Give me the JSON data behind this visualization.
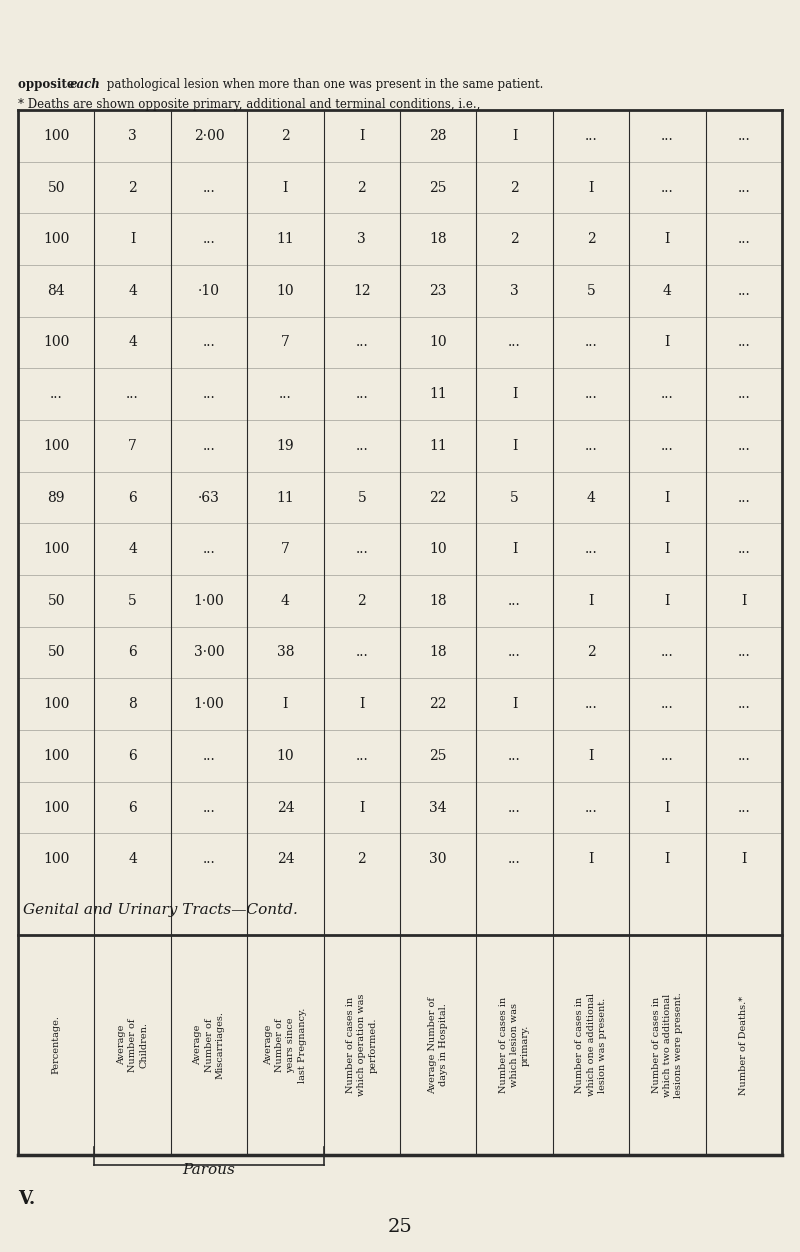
{
  "page_number": "25",
  "section_label": "V.",
  "bg_color": "#f0ece0",
  "table_bg": "#f0ece0",
  "parous_brace_label": "Parous",
  "section_header_parts": [
    "Genit",
    "al and ",
    "Urina",
    "ry ",
    "Trac",
    "ts—Co",
    "ntd."
  ],
  "section_header_full": "Genital and Urinary Tracts—Contd.",
  "col_headers": [
    "Percentage.",
    "Average\nNumber of\nChildren.",
    "Average\nNumber of\nMiscarriages.",
    "Average\nNumber of\nyears since\nlast Pregnancy.",
    "Number of cases in\nwhich operation was\nperformed.",
    "Average Number of\ndays in Hospital.",
    "Number of cases in\nwhich lesion was\nprimary.",
    "Number of cases in\nwhich one additional\nlesion was present.",
    "Number of cases in\nwhich two additional\nlesions were present.",
    "Number of Deaths.*"
  ],
  "rows": [
    [
      "100",
      "4",
      "...",
      "24",
      "2",
      "30",
      "...",
      "I",
      "I",
      "I"
    ],
    [
      "100",
      "6",
      "...",
      "24",
      "I",
      "34",
      "...",
      "...",
      "I",
      "..."
    ],
    [
      "100",
      "6",
      "...",
      "10",
      "...",
      "25",
      "...",
      "I",
      "...",
      "..."
    ],
    [
      "100",
      "8",
      "1·00",
      "I",
      "I",
      "22",
      "I",
      "...",
      "...",
      "..."
    ],
    [
      "50",
      "6",
      "3·00",
      "38",
      "...",
      "18",
      "...",
      "2",
      "...",
      "..."
    ],
    [
      "50",
      "5",
      "1·00",
      "4",
      "2",
      "18",
      "...",
      "I",
      "I",
      "I"
    ],
    [
      "100",
      "4",
      "...",
      "7",
      "...",
      "10",
      "I",
      "...",
      "I",
      "..."
    ],
    [
      "89",
      "6",
      "·63",
      "11",
      "5",
      "22",
      "5",
      "4",
      "I",
      "..."
    ],
    [
      "100",
      "7",
      "...",
      "19",
      "...",
      "11",
      "I",
      "...",
      "...",
      "..."
    ],
    [
      "...",
      "...",
      "...",
      "...",
      "...",
      "11",
      "I",
      "...",
      "...",
      "..."
    ],
    [
      "100",
      "4",
      "...",
      "7",
      "...",
      "10",
      "...",
      "...",
      "I",
      "..."
    ],
    [
      "84",
      "4",
      "·10",
      "10",
      "12",
      "23",
      "3",
      "5",
      "4",
      "..."
    ],
    [
      "100",
      "I",
      "...",
      "11",
      "3",
      "18",
      "2",
      "2",
      "I",
      "..."
    ],
    [
      "50",
      "2",
      "...",
      "I",
      "2",
      "25",
      "2",
      "I",
      "...",
      "..."
    ],
    [
      "100",
      "3",
      "2·00",
      "2",
      "I",
      "28",
      "I",
      "...",
      "...",
      "..."
    ]
  ],
  "footnote_bold": "* Deaths are shown opposite primary, additional and terminal conditions, i.e.,",
  "footnote_normal": "opposite each pathological lesion when more than one was present in the same patient.",
  "footnote_bold_word": "opposite each",
  "line_color": "#2a2a2a",
  "text_color": "#1a1a1a"
}
